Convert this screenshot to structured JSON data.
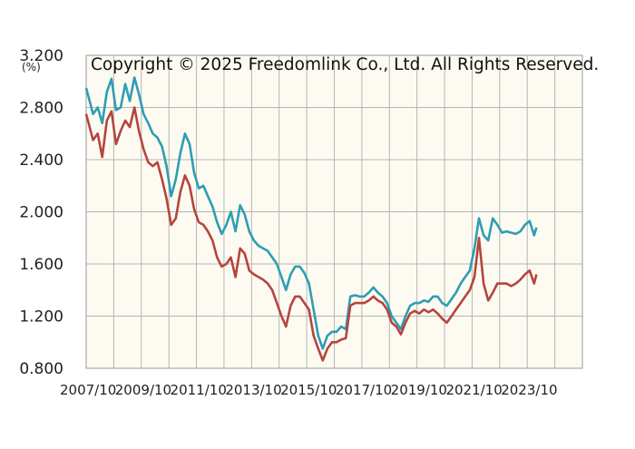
{
  "chart_data": {
    "type": "line",
    "title": "",
    "xlabel": "",
    "ylabel": "(%)",
    "copyright": "Copyright © 2025 Freedomlink Co., Ltd. All Rights Reserved.",
    "ylim": [
      0.8,
      3.2
    ],
    "xlim": [
      "2007/10",
      "2025/10"
    ],
    "grid": true,
    "legend": "none",
    "y_ticks": [
      "0.800",
      "1.200",
      "1.600",
      "2.000",
      "2.400",
      "2.800",
      "3.200"
    ],
    "x_ticks": [
      "2007/10",
      "2009/10",
      "2011/10",
      "2013/10",
      "2015/10",
      "2017/10",
      "2019/10",
      "2021/10",
      "2023/10"
    ],
    "colors": {
      "series_a": "#2e9db5",
      "series_b": "#b5453d",
      "plot_bg": "#fdfbf1",
      "grid": "#b5b5b5"
    },
    "series": [
      {
        "color": "#2e9db5",
        "points": [
          [
            "2007/10",
            2.95
          ],
          [
            "2008/01",
            2.75
          ],
          [
            "2008/03",
            2.8
          ],
          [
            "2008/05",
            2.68
          ],
          [
            "2008/07",
            2.92
          ],
          [
            "2008/09",
            3.02
          ],
          [
            "2008/11",
            2.78
          ],
          [
            "2009/01",
            2.8
          ],
          [
            "2009/03",
            2.98
          ],
          [
            "2009/05",
            2.85
          ],
          [
            "2009/07",
            3.03
          ],
          [
            "2009/09",
            2.9
          ],
          [
            "2009/11",
            2.75
          ],
          [
            "2010/01",
            2.68
          ],
          [
            "2010/03",
            2.6
          ],
          [
            "2010/05",
            2.57
          ],
          [
            "2010/07",
            2.5
          ],
          [
            "2010/09",
            2.35
          ],
          [
            "2010/11",
            2.12
          ],
          [
            "2011/01",
            2.25
          ],
          [
            "2011/03",
            2.45
          ],
          [
            "2011/05",
            2.6
          ],
          [
            "2011/07",
            2.52
          ],
          [
            "2011/09",
            2.3
          ],
          [
            "2011/11",
            2.18
          ],
          [
            "2012/01",
            2.2
          ],
          [
            "2012/03",
            2.12
          ],
          [
            "2012/05",
            2.04
          ],
          [
            "2012/07",
            1.92
          ],
          [
            "2012/09",
            1.83
          ],
          [
            "2012/11",
            1.9
          ],
          [
            "2013/01",
            2.0
          ],
          [
            "2013/03",
            1.85
          ],
          [
            "2013/05",
            2.05
          ],
          [
            "2013/07",
            1.98
          ],
          [
            "2013/09",
            1.85
          ],
          [
            "2013/11",
            1.78
          ],
          [
            "2014/01",
            1.74
          ],
          [
            "2014/03",
            1.72
          ],
          [
            "2014/05",
            1.7
          ],
          [
            "2014/07",
            1.65
          ],
          [
            "2014/09",
            1.6
          ],
          [
            "2014/11",
            1.5
          ],
          [
            "2015/01",
            1.4
          ],
          [
            "2015/03",
            1.52
          ],
          [
            "2015/05",
            1.58
          ],
          [
            "2015/07",
            1.58
          ],
          [
            "2015/09",
            1.53
          ],
          [
            "2015/11",
            1.45
          ],
          [
            "2016/01",
            1.25
          ],
          [
            "2016/03",
            1.05
          ],
          [
            "2016/05",
            0.95
          ],
          [
            "2016/07",
            1.05
          ],
          [
            "2016/09",
            1.08
          ],
          [
            "2016/11",
            1.08
          ],
          [
            "2017/01",
            1.12
          ],
          [
            "2017/03",
            1.1
          ],
          [
            "2017/05",
            1.35
          ],
          [
            "2017/07",
            1.36
          ],
          [
            "2017/09",
            1.35
          ],
          [
            "2017/11",
            1.35
          ],
          [
            "2018/01",
            1.38
          ],
          [
            "2018/03",
            1.42
          ],
          [
            "2018/05",
            1.38
          ],
          [
            "2018/07",
            1.35
          ],
          [
            "2018/09",
            1.3
          ],
          [
            "2018/11",
            1.2
          ],
          [
            "2019/01",
            1.15
          ],
          [
            "2019/03",
            1.1
          ],
          [
            "2019/05",
            1.2
          ],
          [
            "2019/07",
            1.28
          ],
          [
            "2019/09",
            1.3
          ],
          [
            "2019/11",
            1.3
          ],
          [
            "2020/01",
            1.32
          ],
          [
            "2020/03",
            1.31
          ],
          [
            "2020/05",
            1.35
          ],
          [
            "2020/07",
            1.35
          ],
          [
            "2020/09",
            1.3
          ],
          [
            "2020/11",
            1.28
          ],
          [
            "2021/01",
            1.33
          ],
          [
            "2021/03",
            1.38
          ],
          [
            "2021/05",
            1.45
          ],
          [
            "2021/07",
            1.5
          ],
          [
            "2021/09",
            1.55
          ],
          [
            "2021/11",
            1.72
          ],
          [
            "2022/01",
            1.95
          ],
          [
            "2022/03",
            1.82
          ],
          [
            "2022/05",
            1.78
          ],
          [
            "2022/07",
            1.95
          ],
          [
            "2022/09",
            1.9
          ],
          [
            "2022/11",
            1.84
          ],
          [
            "2023/01",
            1.85
          ],
          [
            "2023/03",
            1.84
          ],
          [
            "2023/05",
            1.83
          ],
          [
            "2023/07",
            1.85
          ],
          [
            "2023/09",
            1.9
          ],
          [
            "2023/11",
            1.93
          ],
          [
            "2024/01",
            1.82
          ],
          [
            "2024/02",
            1.88
          ]
        ]
      },
      {
        "color": "#b5453d",
        "points": [
          [
            "2007/10",
            2.75
          ],
          [
            "2008/01",
            2.55
          ],
          [
            "2008/03",
            2.6
          ],
          [
            "2008/05",
            2.42
          ],
          [
            "2008/07",
            2.7
          ],
          [
            "2008/09",
            2.77
          ],
          [
            "2008/11",
            2.52
          ],
          [
            "2009/01",
            2.62
          ],
          [
            "2009/03",
            2.7
          ],
          [
            "2009/05",
            2.65
          ],
          [
            "2009/07",
            2.8
          ],
          [
            "2009/09",
            2.62
          ],
          [
            "2009/11",
            2.48
          ],
          [
            "2010/01",
            2.38
          ],
          [
            "2010/03",
            2.35
          ],
          [
            "2010/05",
            2.38
          ],
          [
            "2010/07",
            2.25
          ],
          [
            "2010/09",
            2.1
          ],
          [
            "2010/11",
            1.9
          ],
          [
            "2011/01",
            1.95
          ],
          [
            "2011/03",
            2.15
          ],
          [
            "2011/05",
            2.28
          ],
          [
            "2011/07",
            2.2
          ],
          [
            "2011/09",
            2.02
          ],
          [
            "2011/11",
            1.92
          ],
          [
            "2012/01",
            1.9
          ],
          [
            "2012/03",
            1.85
          ],
          [
            "2012/05",
            1.78
          ],
          [
            "2012/07",
            1.65
          ],
          [
            "2012/09",
            1.58
          ],
          [
            "2012/11",
            1.6
          ],
          [
            "2013/01",
            1.65
          ],
          [
            "2013/03",
            1.5
          ],
          [
            "2013/05",
            1.72
          ],
          [
            "2013/07",
            1.68
          ],
          [
            "2013/09",
            1.55
          ],
          [
            "2013/11",
            1.52
          ],
          [
            "2014/01",
            1.5
          ],
          [
            "2014/03",
            1.48
          ],
          [
            "2014/05",
            1.45
          ],
          [
            "2014/07",
            1.4
          ],
          [
            "2014/09",
            1.3
          ],
          [
            "2014/11",
            1.2
          ],
          [
            "2015/01",
            1.12
          ],
          [
            "2015/03",
            1.28
          ],
          [
            "2015/05",
            1.35
          ],
          [
            "2015/07",
            1.35
          ],
          [
            "2015/09",
            1.3
          ],
          [
            "2015/11",
            1.25
          ],
          [
            "2016/01",
            1.05
          ],
          [
            "2016/03",
            0.95
          ],
          [
            "2016/05",
            0.86
          ],
          [
            "2016/07",
            0.95
          ],
          [
            "2016/09",
            1.0
          ],
          [
            "2016/11",
            1.0
          ],
          [
            "2017/01",
            1.02
          ],
          [
            "2017/03",
            1.03
          ],
          [
            "2017/05",
            1.28
          ],
          [
            "2017/07",
            1.3
          ],
          [
            "2017/09",
            1.3
          ],
          [
            "2017/11",
            1.3
          ],
          [
            "2018/01",
            1.32
          ],
          [
            "2018/03",
            1.35
          ],
          [
            "2018/05",
            1.32
          ],
          [
            "2018/07",
            1.3
          ],
          [
            "2018/09",
            1.25
          ],
          [
            "2018/11",
            1.15
          ],
          [
            "2019/01",
            1.12
          ],
          [
            "2019/03",
            1.06
          ],
          [
            "2019/05",
            1.15
          ],
          [
            "2019/07",
            1.22
          ],
          [
            "2019/09",
            1.24
          ],
          [
            "2019/11",
            1.22
          ],
          [
            "2020/01",
            1.25
          ],
          [
            "2020/03",
            1.23
          ],
          [
            "2020/05",
            1.25
          ],
          [
            "2020/07",
            1.22
          ],
          [
            "2020/09",
            1.18
          ],
          [
            "2020/11",
            1.15
          ],
          [
            "2021/01",
            1.2
          ],
          [
            "2021/03",
            1.25
          ],
          [
            "2021/05",
            1.3
          ],
          [
            "2021/07",
            1.35
          ],
          [
            "2021/09",
            1.4
          ],
          [
            "2021/11",
            1.5
          ],
          [
            "2022/01",
            1.8
          ],
          [
            "2022/03",
            1.45
          ],
          [
            "2022/05",
            1.32
          ],
          [
            "2022/07",
            1.38
          ],
          [
            "2022/09",
            1.45
          ],
          [
            "2022/11",
            1.45
          ],
          [
            "2023/01",
            1.45
          ],
          [
            "2023/03",
            1.43
          ],
          [
            "2023/05",
            1.45
          ],
          [
            "2023/07",
            1.48
          ],
          [
            "2023/09",
            1.52
          ],
          [
            "2023/11",
            1.55
          ],
          [
            "2024/01",
            1.45
          ],
          [
            "2024/02",
            1.52
          ]
        ]
      }
    ]
  }
}
